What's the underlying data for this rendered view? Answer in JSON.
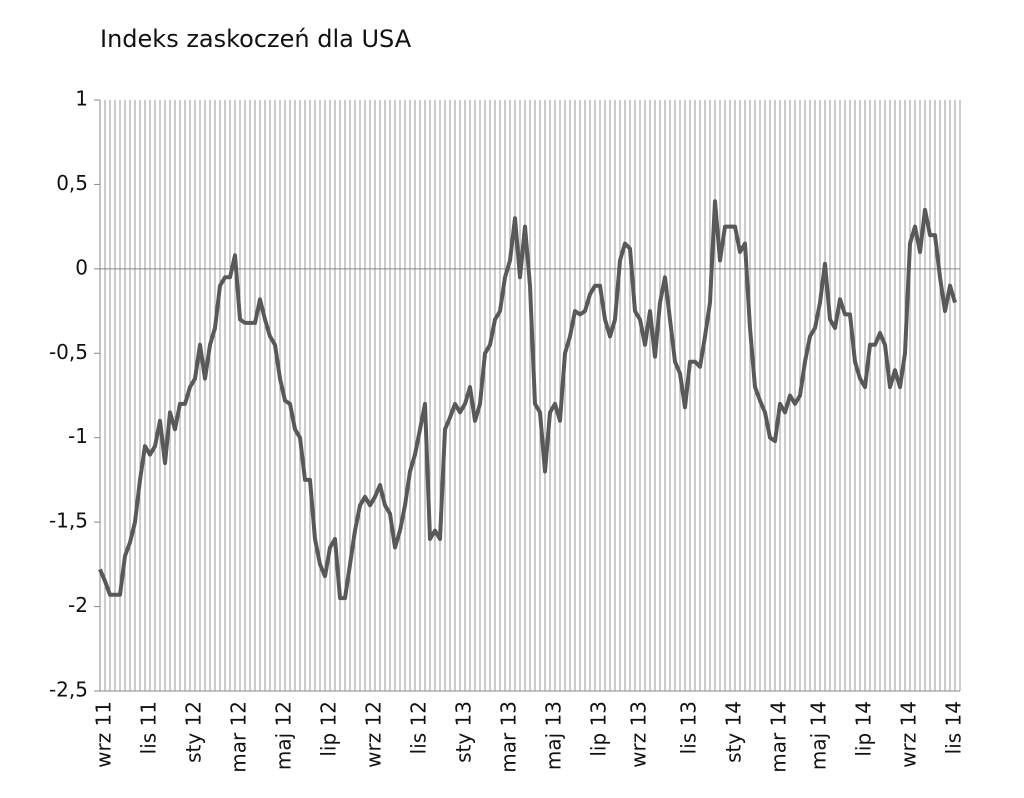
{
  "chart_data": {
    "type": "line",
    "title": "Indeks zaskoczeń dla USA",
    "categories": [
      null,
      "wrz 11",
      null,
      null,
      null,
      null,
      null,
      null,
      null,
      null,
      "lis 11",
      null,
      null,
      null,
      null,
      null,
      null,
      null,
      null,
      "sty 12",
      null,
      null,
      null,
      null,
      null,
      null,
      null,
      null,
      "mar 12",
      null,
      null,
      null,
      null,
      null,
      null,
      null,
      null,
      "maj 12",
      null,
      null,
      null,
      null,
      null,
      null,
      null,
      null,
      "lip 12",
      null,
      null,
      null,
      null,
      null,
      null,
      null,
      null,
      "wrz 12",
      null,
      null,
      null,
      null,
      null,
      null,
      null,
      null,
      "lis 12",
      null,
      null,
      null,
      null,
      null,
      null,
      null,
      null,
      "sty 13",
      null,
      null,
      null,
      null,
      null,
      null,
      null,
      null,
      "mar 13",
      null,
      null,
      null,
      null,
      null,
      null,
      null,
      null,
      "maj 13",
      null,
      null,
      null,
      null,
      null,
      null,
      null,
      null,
      "lip 13",
      null,
      null,
      null,
      null,
      null,
      null,
      null,
      "wrz 13",
      null,
      null,
      null,
      null,
      null,
      null,
      null,
      null,
      null,
      "lis 13",
      null,
      null,
      null,
      null,
      null,
      null,
      null,
      null,
      "sty 14",
      null,
      null,
      null,
      null,
      null,
      null,
      null,
      null,
      "mar 14",
      null,
      null,
      null,
      null,
      null,
      null,
      null,
      "maj 14",
      null,
      null,
      null,
      null,
      null,
      null,
      null,
      null,
      "lip 14",
      null,
      null,
      null,
      null,
      null,
      null,
      null,
      null,
      "wrz 14",
      null,
      null,
      null,
      null,
      null,
      null,
      null,
      null,
      "lis 14"
    ],
    "series": [
      {
        "name": "Indeks zaskoczeń",
        "color": "#595959",
        "values": [
          -1.78,
          -1.85,
          -1.93,
          -1.93,
          -1.93,
          -1.7,
          -1.62,
          -1.5,
          -1.25,
          -1.05,
          -1.1,
          -1.05,
          -0.9,
          -1.15,
          -0.85,
          -0.95,
          -0.8,
          -0.8,
          -0.7,
          -0.65,
          -0.45,
          -0.65,
          -0.45,
          -0.35,
          -0.1,
          -0.05,
          -0.05,
          0.08,
          -0.3,
          -0.32,
          -0.32,
          -0.32,
          -0.18,
          -0.3,
          -0.4,
          -0.45,
          -0.65,
          -0.78,
          -0.8,
          -0.95,
          -1.0,
          -1.25,
          -1.25,
          -1.6,
          -1.75,
          -1.82,
          -1.65,
          -1.6,
          -1.95,
          -1.95,
          -1.75,
          -1.55,
          -1.4,
          -1.35,
          -1.4,
          -1.35,
          -1.28,
          -1.4,
          -1.45,
          -1.65,
          -1.55,
          -1.4,
          -1.2,
          -1.1,
          -0.95,
          -0.8,
          -1.6,
          -1.55,
          -1.6,
          -0.95,
          -0.88,
          -0.8,
          -0.85,
          -0.8,
          -0.7,
          -0.9,
          -0.8,
          -0.5,
          -0.45,
          -0.3,
          -0.25,
          -0.05,
          0.05,
          0.3,
          -0.05,
          0.25,
          -0.1,
          -0.8,
          -0.85,
          -1.2,
          -0.85,
          -0.8,
          -0.9,
          -0.5,
          -0.4,
          -0.25,
          -0.27,
          -0.25,
          -0.15,
          -0.1,
          -0.1,
          -0.3,
          -0.4,
          -0.3,
          0.05,
          0.15,
          0.12,
          -0.25,
          -0.3,
          -0.45,
          -0.25,
          -0.52,
          -0.2,
          -0.05,
          -0.3,
          -0.55,
          -0.62,
          -0.82,
          -0.55,
          -0.55,
          -0.58,
          -0.4,
          -0.2,
          0.4,
          0.05,
          0.25,
          0.25,
          0.25,
          0.1,
          0.15,
          -0.35,
          -0.7,
          -0.78,
          -0.85,
          -1.0,
          -1.02,
          -0.8,
          -0.85,
          -0.75,
          -0.8,
          -0.75,
          -0.55,
          -0.4,
          -0.35,
          -0.2,
          0.03,
          -0.3,
          -0.35,
          -0.18,
          -0.27,
          -0.27,
          -0.55,
          -0.65,
          -0.7,
          -0.45,
          -0.45,
          -0.38,
          -0.45,
          -0.7,
          -0.6,
          -0.7,
          -0.5,
          0.15,
          0.25,
          0.1,
          0.35,
          0.2,
          0.2,
          -0.05,
          -0.25,
          -0.1,
          -0.2
        ]
      }
    ],
    "ylim": [
      -2.5,
      1
    ],
    "yticks": [
      {
        "value": -2.5,
        "label": "-2,5"
      },
      -2,
      {
        "value": -1.5,
        "label": "-1,5"
      },
      -1,
      {
        "value": -0.5,
        "label": "-0,5"
      },
      0,
      {
        "value": 0.5,
        "label": "0,5"
      },
      1
    ],
    "grid": true
  }
}
